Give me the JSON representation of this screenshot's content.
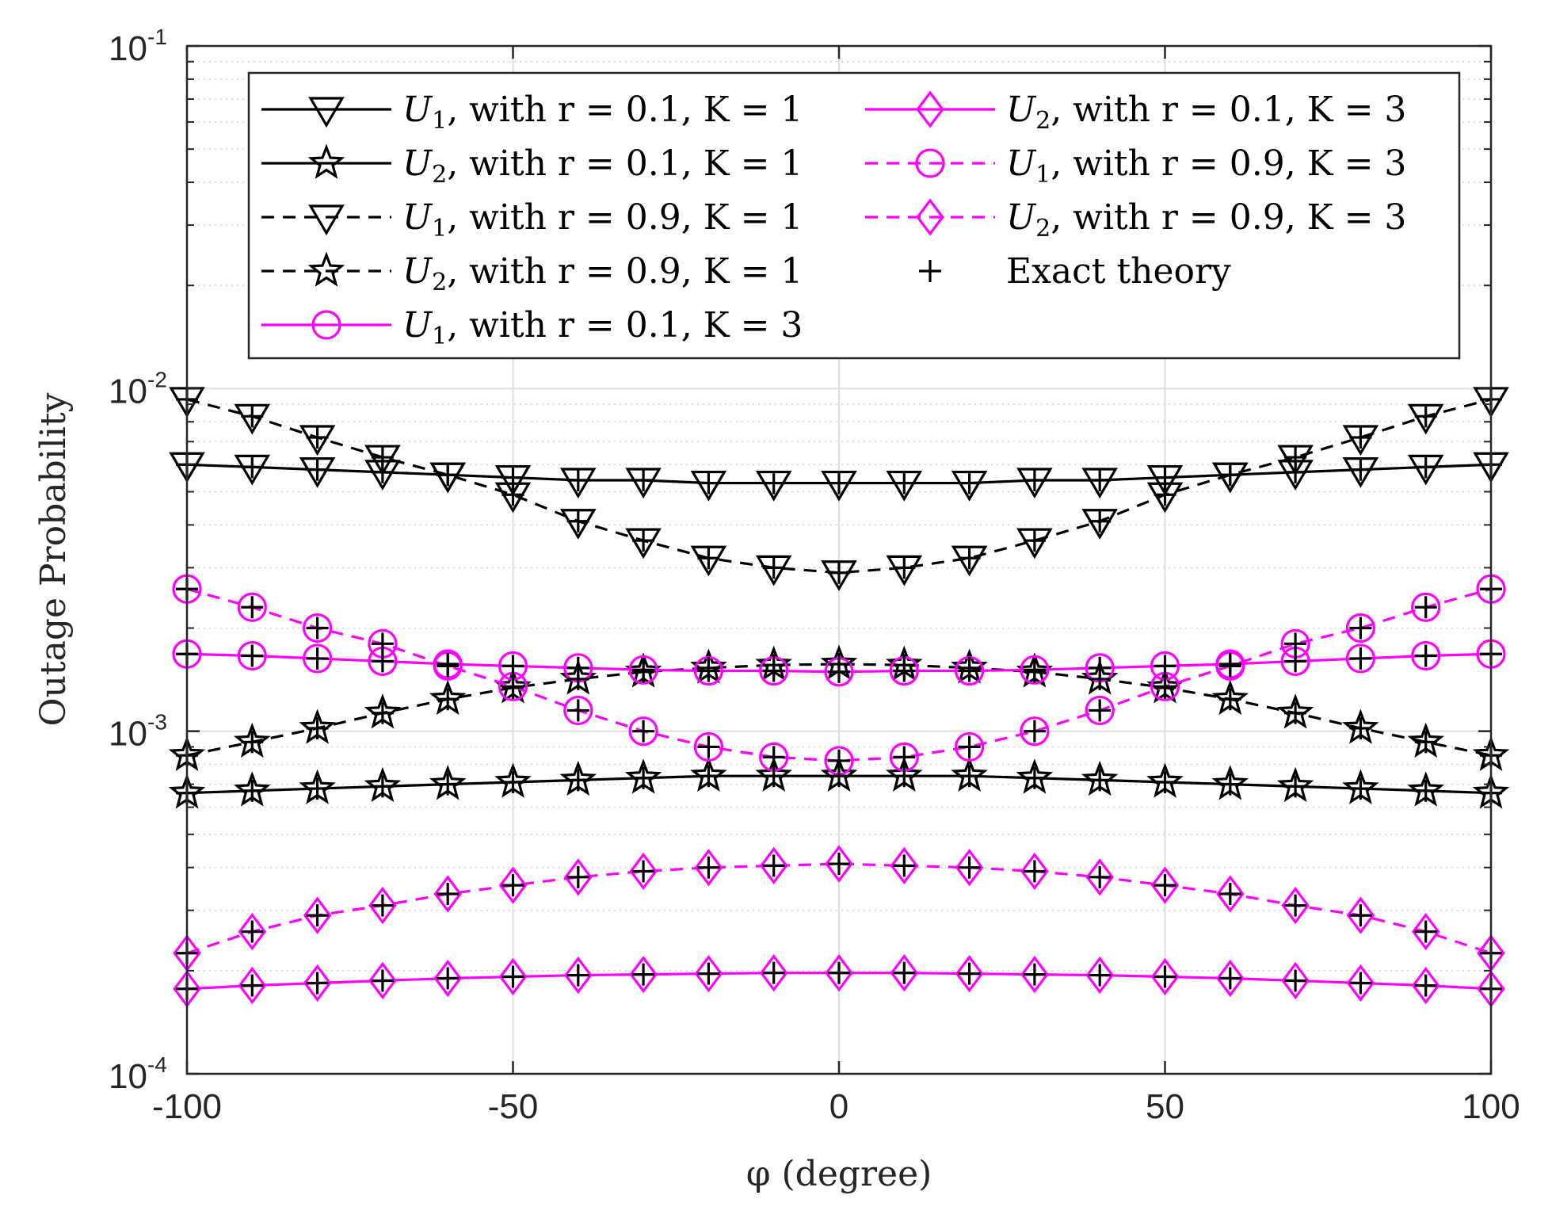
{
  "chart_data": {
    "type": "line",
    "title": "",
    "xlabel": "φ (degree)",
    "ylabel": "Outage Probability",
    "xlim": [
      -100,
      100
    ],
    "ylim": [
      0.0001,
      0.1
    ],
    "yscale": "log",
    "grid": true,
    "legend_position": "top",
    "x_ticks": [
      -100,
      -50,
      0,
      50,
      100
    ],
    "x_tick_labels": [
      "-100",
      "-50",
      "0",
      "50",
      "100"
    ],
    "y_ticks": [
      {
        "value": 0.0001,
        "base": "10",
        "exp": "-4"
      },
      {
        "value": 0.001,
        "base": "10",
        "exp": "-3"
      },
      {
        "value": 0.01,
        "base": "10",
        "exp": "-2"
      },
      {
        "value": 0.1,
        "base": "10",
        "exp": "-1"
      }
    ],
    "x": [
      -100,
      -90,
      -80,
      -70,
      -60,
      -50,
      -40,
      -30,
      -20,
      -10,
      0,
      10,
      20,
      30,
      40,
      50,
      60,
      70,
      80,
      90,
      100
    ],
    "series": [
      {
        "name": "U1, with r = 0.1, K = 1",
        "user": "U",
        "sub": "1",
        "rest": ", with r = 0.1, K = 1",
        "color": "#000000",
        "dashed": false,
        "marker": "triangle-down",
        "values": [
          0.006,
          0.0059,
          0.0058,
          0.0057,
          0.0056,
          0.0055,
          0.0054,
          0.0054,
          0.0053,
          0.0053,
          0.0053,
          0.0053,
          0.0053,
          0.0054,
          0.0054,
          0.0055,
          0.0056,
          0.0057,
          0.0058,
          0.0059,
          0.006
        ]
      },
      {
        "name": "U2, with r = 0.1, K = 1",
        "user": "U",
        "sub": "2",
        "rest": ", with r = 0.1, K = 1",
        "color": "#000000",
        "dashed": false,
        "marker": "star",
        "values": [
          0.00066,
          0.00067,
          0.00068,
          0.00069,
          0.0007,
          0.00071,
          0.00072,
          0.00073,
          0.00074,
          0.00074,
          0.00074,
          0.00074,
          0.00074,
          0.00073,
          0.00072,
          0.00071,
          0.0007,
          0.00069,
          0.00068,
          0.00067,
          0.00066
        ]
      },
      {
        "name": "U1, with r = 0.9, K = 1",
        "user": "U",
        "sub": "1",
        "rest": ", with r = 0.9, K = 1",
        "color": "#000000",
        "dashed": true,
        "marker": "triangle-down",
        "values": [
          0.0093,
          0.0083,
          0.0072,
          0.0063,
          0.0056,
          0.0049,
          0.0041,
          0.0036,
          0.0032,
          0.003,
          0.0029,
          0.003,
          0.0032,
          0.0036,
          0.0041,
          0.0049,
          0.0056,
          0.0063,
          0.0072,
          0.0083,
          0.0093
        ]
      },
      {
        "name": "U2, with r = 0.9, K = 1",
        "user": "U",
        "sub": "2",
        "rest": ", with r = 0.9, K = 1",
        "color": "#000000",
        "dashed": true,
        "marker": "star",
        "values": [
          0.00085,
          0.00093,
          0.00102,
          0.00113,
          0.00124,
          0.00134,
          0.00142,
          0.00149,
          0.00153,
          0.00156,
          0.00157,
          0.00156,
          0.00153,
          0.00149,
          0.00142,
          0.00134,
          0.00124,
          0.00113,
          0.00102,
          0.00093,
          0.00085
        ]
      },
      {
        "name": "U1, with r = 0.1, K = 3",
        "user": "U",
        "sub": "1",
        "rest": ", with r = 0.1, K = 3",
        "color": "#ff00ff",
        "dashed": false,
        "marker": "circle",
        "values": [
          0.00168,
          0.00166,
          0.00163,
          0.0016,
          0.00157,
          0.00155,
          0.00153,
          0.00151,
          0.0015,
          0.0015,
          0.00149,
          0.0015,
          0.0015,
          0.00151,
          0.00153,
          0.00155,
          0.00157,
          0.0016,
          0.00163,
          0.00166,
          0.00168
        ]
      },
      {
        "name": "U2, with r = 0.1, K = 3",
        "user": "U",
        "sub": "2",
        "rest": ", with r = 0.1, K = 3",
        "color": "#ff00ff",
        "dashed": false,
        "marker": "diamond",
        "values": [
          0.000177,
          0.000181,
          0.000184,
          0.000187,
          0.00019,
          0.000192,
          0.000194,
          0.000195,
          0.000196,
          0.000197,
          0.000197,
          0.000197,
          0.000196,
          0.000195,
          0.000194,
          0.000192,
          0.00019,
          0.000187,
          0.000184,
          0.000181,
          0.000177
        ]
      },
      {
        "name": "U1, with r = 0.9, K = 3",
        "user": "U",
        "sub": "1",
        "rest": ", with r = 0.9, K = 3",
        "color": "#ff00ff",
        "dashed": true,
        "marker": "circle",
        "values": [
          0.0026,
          0.0023,
          0.002,
          0.0018,
          0.00155,
          0.00135,
          0.00115,
          0.001,
          0.0009,
          0.00084,
          0.00082,
          0.00084,
          0.0009,
          0.001,
          0.00115,
          0.00135,
          0.00155,
          0.0018,
          0.002,
          0.0023,
          0.0026
        ]
      },
      {
        "name": "U2, with r = 0.9, K = 3",
        "user": "U",
        "sub": "2",
        "rest": ", with r = 0.9, K = 3",
        "color": "#ff00ff",
        "dashed": true,
        "marker": "diamond",
        "values": [
          0.000225,
          0.00026,
          0.00029,
          0.00031,
          0.000335,
          0.000355,
          0.000375,
          0.00039,
          0.0004,
          0.000405,
          0.00041,
          0.000405,
          0.0004,
          0.00039,
          0.000375,
          0.000355,
          0.000335,
          0.00031,
          0.00029,
          0.00026,
          0.000225
        ]
      }
    ],
    "exact_theory": {
      "label": "Exact theory",
      "marker": "plus",
      "color": "#000000",
      "applies_to": "all series"
    }
  }
}
